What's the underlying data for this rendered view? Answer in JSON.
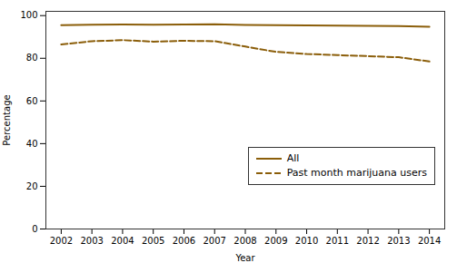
{
  "chart_data": {
    "type": "line",
    "xlabel": "Year",
    "ylabel": "Percentage",
    "x": [
      2002,
      2003,
      2004,
      2005,
      2006,
      2007,
      2008,
      2009,
      2010,
      2011,
      2012,
      2013,
      2014
    ],
    "xlim": [
      2001.5,
      2014.5
    ],
    "xticks": [
      2002,
      2003,
      2004,
      2005,
      2006,
      2007,
      2008,
      2009,
      2010,
      2011,
      2012,
      2013,
      2014
    ],
    "ylim": [
      0,
      102
    ],
    "yticks": [
      0,
      20,
      40,
      60,
      80,
      100
    ],
    "grid": false,
    "legend": "lower right",
    "series": [
      {
        "name": "All",
        "color": "#8B5E0A",
        "line_style": "solid",
        "values": [
          95.5,
          95.7,
          95.8,
          95.7,
          95.8,
          95.9,
          95.6,
          95.5,
          95.4,
          95.3,
          95.2,
          95.1,
          94.8
        ]
      },
      {
        "name": "Past month marijuana users",
        "color": "#8B5E0A",
        "line_style": "dashed",
        "values": [
          86.5,
          88.0,
          88.5,
          87.8,
          88.2,
          88.0,
          85.5,
          83.0,
          82.0,
          81.5,
          81.0,
          80.5,
          78.5
        ]
      }
    ]
  }
}
